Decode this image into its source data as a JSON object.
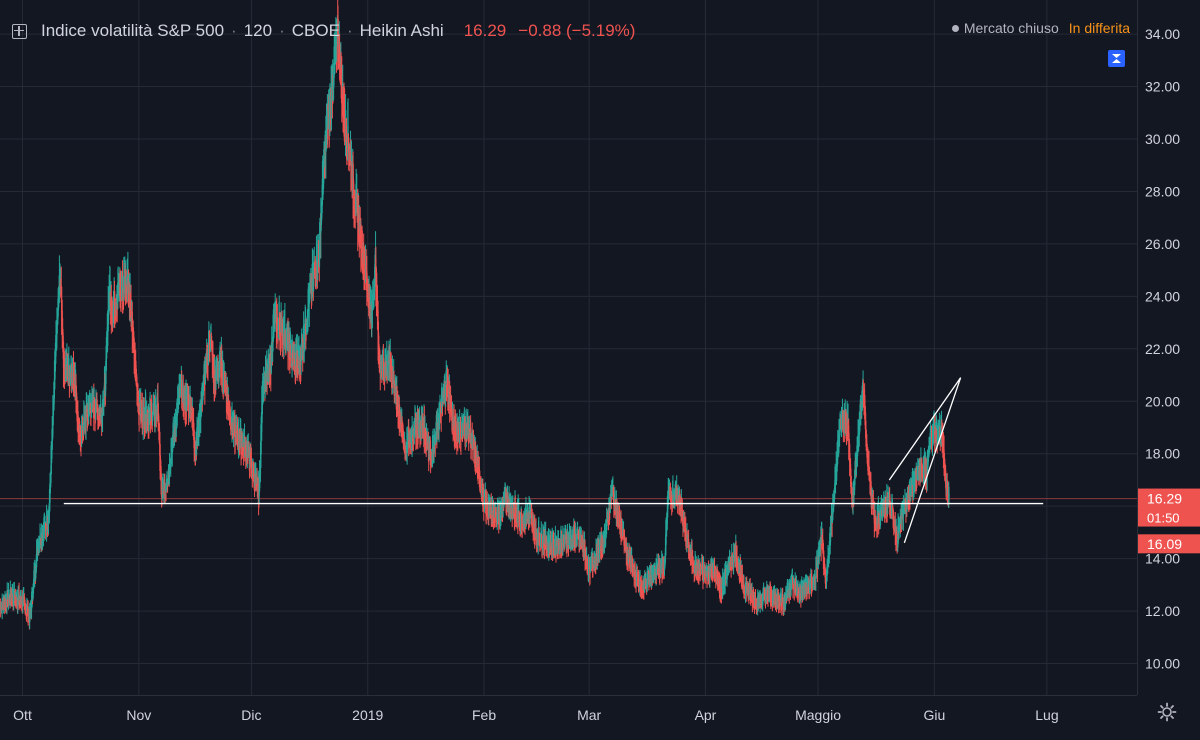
{
  "header": {
    "title": "Indice volatilità S&P 500",
    "interval": "120",
    "exchange": "CBOE",
    "chart_style": "Heikin Ashi",
    "last": "16.29",
    "change": "−0.88 (−5.19%)",
    "separator": "·"
  },
  "status": {
    "market": "Mercato chiuso",
    "feed": "In differita"
  },
  "price_badges": {
    "last": "16.29",
    "countdown": "01:50",
    "low": "16.09"
  },
  "icons": {
    "layout": "plus-square-icon",
    "collapse": "collapse-icon",
    "settings": "gear-icon"
  },
  "colors": {
    "background": "#131722",
    "up": "#26a69a",
    "down": "#ef5350",
    "grid": "#262a36",
    "text": "#d1d4dc",
    "delayed": "#f7931a",
    "badge": "#ef5350"
  },
  "chart_data": {
    "type": "candlestick",
    "style": "Heikin Ashi",
    "x_axis": {
      "type": "date",
      "range": [
        "2018-09-25",
        "2019-07-25"
      ],
      "ticks": [
        {
          "date": "2018-10-01",
          "label": "Ott"
        },
        {
          "date": "2018-11-01",
          "label": "Nov"
        },
        {
          "date": "2018-12-01",
          "label": "Dic"
        },
        {
          "date": "2019-01-01",
          "label": "2019"
        },
        {
          "date": "2019-02-01",
          "label": "Feb"
        },
        {
          "date": "2019-03-01",
          "label": "Mar"
        },
        {
          "date": "2019-04-01",
          "label": "Apr"
        },
        {
          "date": "2019-05-01",
          "label": "Maggio"
        },
        {
          "date": "2019-06-01",
          "label": "Giu"
        },
        {
          "date": "2019-07-01",
          "label": "Lug"
        }
      ]
    },
    "y_axis": {
      "range": [
        8.8,
        35.3
      ],
      "ticks": [
        "10.00",
        "12.00",
        "14.00",
        "16.00",
        "18.00",
        "20.00",
        "22.00",
        "24.00",
        "26.00",
        "28.00",
        "30.00",
        "32.00",
        "34.00"
      ],
      "grid": true,
      "position": "right"
    },
    "price_lines": [
      16.29,
      16.09
    ],
    "series": [
      {
        "points": [
          [
            "2018-09-25",
            12.2
          ],
          [
            "2018-09-28",
            12.6
          ],
          [
            "2018-10-01",
            12.4
          ],
          [
            "2018-10-03",
            11.8
          ],
          [
            "2018-10-05",
            14.5
          ],
          [
            "2018-10-08",
            15.6
          ],
          [
            "2018-10-10",
            22.5
          ],
          [
            "2018-10-11",
            24.8
          ],
          [
            "2018-10-12",
            21.3
          ],
          [
            "2018-10-15",
            21.0
          ],
          [
            "2018-10-16",
            18.5
          ],
          [
            "2018-10-18",
            19.5
          ],
          [
            "2018-10-19",
            19.9
          ],
          [
            "2018-10-22",
            19.6
          ],
          [
            "2018-10-23",
            20.6
          ],
          [
            "2018-10-24",
            24.2
          ],
          [
            "2018-10-25",
            23.5
          ],
          [
            "2018-10-26",
            24.0
          ],
          [
            "2018-10-29",
            24.8
          ],
          [
            "2018-10-30",
            23.2
          ],
          [
            "2018-10-31",
            21.3
          ],
          [
            "2018-11-01",
            19.8
          ],
          [
            "2018-11-02",
            19.5
          ],
          [
            "2018-11-05",
            19.5
          ],
          [
            "2018-11-06",
            19.9
          ],
          [
            "2018-11-07",
            16.4
          ],
          [
            "2018-11-08",
            16.7
          ],
          [
            "2018-11-09",
            17.4
          ],
          [
            "2018-11-12",
            20.5
          ],
          [
            "2018-11-13",
            20.0
          ],
          [
            "2018-11-15",
            19.9
          ],
          [
            "2018-11-16",
            18.1
          ],
          [
            "2018-11-20",
            22.5
          ],
          [
            "2018-11-21",
            20.8
          ],
          [
            "2018-11-23",
            21.5
          ],
          [
            "2018-11-26",
            18.9
          ],
          [
            "2018-11-28",
            18.5
          ],
          [
            "2018-11-30",
            18.1
          ],
          [
            "2018-12-03",
            16.4
          ],
          [
            "2018-12-04",
            20.7
          ],
          [
            "2018-12-06",
            21.2
          ],
          [
            "2018-12-07",
            23.2
          ],
          [
            "2018-12-10",
            22.6
          ],
          [
            "2018-12-12",
            21.5
          ],
          [
            "2018-12-14",
            21.6
          ],
          [
            "2018-12-17",
            24.5
          ],
          [
            "2018-12-19",
            25.6
          ],
          [
            "2018-12-20",
            28.4
          ],
          [
            "2018-12-21",
            30.1
          ],
          [
            "2018-12-24",
            34.0
          ],
          [
            "2018-12-26",
            30.4
          ],
          [
            "2018-12-27",
            29.9
          ],
          [
            "2018-12-28",
            28.3
          ],
          [
            "2018-12-31",
            25.4
          ],
          [
            "2019-01-02",
            23.2
          ],
          [
            "2019-01-03",
            25.4
          ],
          [
            "2019-01-04",
            21.4
          ],
          [
            "2019-01-07",
            21.4
          ],
          [
            "2019-01-09",
            19.9
          ],
          [
            "2019-01-11",
            18.2
          ],
          [
            "2019-01-14",
            19.1
          ],
          [
            "2019-01-16",
            19.0
          ],
          [
            "2019-01-18",
            17.8
          ],
          [
            "2019-01-22",
            20.8
          ],
          [
            "2019-01-24",
            18.9
          ],
          [
            "2019-01-28",
            18.9
          ],
          [
            "2019-01-30",
            17.7
          ],
          [
            "2019-02-01",
            16.1
          ],
          [
            "2019-02-05",
            15.6
          ],
          [
            "2019-02-07",
            16.4
          ],
          [
            "2019-02-08",
            16.0
          ],
          [
            "2019-02-11",
            15.5
          ],
          [
            "2019-02-13",
            15.7
          ],
          [
            "2019-02-15",
            14.9
          ],
          [
            "2019-02-19",
            14.5
          ],
          [
            "2019-02-21",
            14.6
          ],
          [
            "2019-02-25",
            14.8
          ],
          [
            "2019-02-27",
            14.7
          ],
          [
            "2019-03-01",
            13.6
          ],
          [
            "2019-03-05",
            14.7
          ],
          [
            "2019-03-07",
            16.6
          ],
          [
            "2019-03-08",
            16.1
          ],
          [
            "2019-03-11",
            14.3
          ],
          [
            "2019-03-13",
            13.4
          ],
          [
            "2019-03-15",
            12.9
          ],
          [
            "2019-03-19",
            13.6
          ],
          [
            "2019-03-21",
            13.6
          ],
          [
            "2019-03-22",
            16.5
          ],
          [
            "2019-03-25",
            16.3
          ],
          [
            "2019-03-27",
            14.7
          ],
          [
            "2019-03-29",
            13.7
          ],
          [
            "2019-04-01",
            13.4
          ],
          [
            "2019-04-03",
            13.7
          ],
          [
            "2019-04-05",
            12.8
          ],
          [
            "2019-04-09",
            14.3
          ],
          [
            "2019-04-11",
            13.0
          ],
          [
            "2019-04-15",
            12.3
          ],
          [
            "2019-04-17",
            12.6
          ],
          [
            "2019-04-22",
            12.4
          ],
          [
            "2019-04-24",
            13.1
          ],
          [
            "2019-04-26",
            12.7
          ],
          [
            "2019-04-30",
            13.1
          ],
          [
            "2019-05-02",
            14.8
          ],
          [
            "2019-05-03",
            12.9
          ],
          [
            "2019-05-07",
            19.3
          ],
          [
            "2019-05-09",
            19.1
          ],
          [
            "2019-05-10",
            16.0
          ],
          [
            "2019-05-13",
            20.6
          ],
          [
            "2019-05-14",
            18.1
          ],
          [
            "2019-05-16",
            15.4
          ],
          [
            "2019-05-20",
            16.3
          ],
          [
            "2019-05-22",
            14.8
          ],
          [
            "2019-05-24",
            15.9
          ],
          [
            "2019-05-28",
            17.5
          ],
          [
            "2019-05-30",
            17.3
          ],
          [
            "2019-05-31",
            18.7
          ],
          [
            "2019-06-03",
            18.9
          ],
          [
            "2019-06-04",
            16.9
          ],
          [
            "2019-06-05",
            16.1
          ]
        ]
      }
    ],
    "drawings": [
      {
        "type": "horizontal_line",
        "y": 16.1,
        "from": "2018-10-12",
        "to": "2019-06-30"
      },
      {
        "type": "trend_line",
        "from": [
          "2019-05-20",
          17.0
        ],
        "to": [
          "2019-06-08",
          20.9
        ]
      },
      {
        "type": "trend_line",
        "from": [
          "2019-05-24",
          14.6
        ],
        "to": [
          "2019-06-08",
          20.9
        ]
      }
    ],
    "xlabel": "",
    "ylabel": "",
    "legend": "none"
  }
}
